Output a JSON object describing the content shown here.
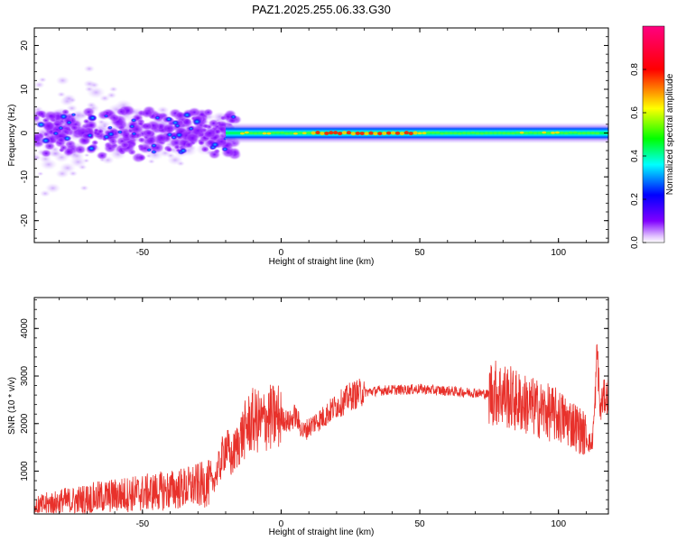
{
  "title": "PAZ1.2025.255.06.33.G30",
  "chart_data": [
    {
      "type": "heatmap",
      "xlabel": "Height of straight line (km)",
      "ylabel": "Frequency (Hz)",
      "xlim": [
        -89,
        118
      ],
      "ylim": [
        -25,
        24
      ],
      "xticks": [
        -50,
        0,
        50,
        100
      ],
      "yticks": [
        -20,
        -10,
        0,
        10,
        20
      ],
      "grid": false,
      "colorbar": {
        "label": "Normalized spectral amplitude",
        "range": [
          0,
          1
        ],
        "ticks": [
          "0.0",
          "0.2",
          "0.4",
          "0.6",
          "0.8"
        ],
        "colormap": "hsv-like (purple-blue-cyan-green-yellow-red-magenta)",
        "colors": [
          "#ffffff",
          "#8000ff",
          "#0000ff",
          "#00ffff",
          "#00ff00",
          "#ffff00",
          "#ff0000",
          "#ff0080"
        ]
      },
      "features": [
        {
          "x_range": [
            -89,
            -20
          ],
          "freq_spread": [
            -12,
            12
          ],
          "amplitude": "low-medium, scattered"
        },
        {
          "x_range": [
            -20,
            118
          ],
          "freq_spread": [
            -1.5,
            1.5
          ],
          "amplitude": "high, narrow band near 0 Hz"
        },
        {
          "x_range": [
            10,
            50
          ],
          "freq_spread": [
            -0.5,
            0.5
          ],
          "amplitude": "peak (red) near 0 Hz"
        }
      ]
    },
    {
      "type": "line",
      "xlabel": "Height of straight line (km)",
      "ylabel": "SNR (10 * v/v)",
      "xlim": [
        -89,
        118
      ],
      "ylim": [
        100,
        4650
      ],
      "xticks": [
        -50,
        0,
        50,
        100
      ],
      "yticks": [
        1000,
        2000,
        3000,
        4000
      ],
      "grid": false,
      "series": [
        {
          "color": "#e8312b",
          "x": [
            -89,
            -85,
            -80,
            -75,
            -70,
            -65,
            -60,
            -55,
            -50,
            -45,
            -40,
            -35,
            -30,
            -25,
            -22,
            -20,
            -18,
            -15,
            -12,
            -10,
            -7,
            -5,
            -2,
            0,
            3,
            5,
            8,
            10,
            12,
            15,
            18,
            20,
            23,
            25,
            28,
            30,
            35,
            40,
            45,
            50,
            55,
            60,
            65,
            70,
            75,
            80,
            85,
            90,
            95,
            100,
            103,
            105,
            108,
            110,
            112,
            113,
            114,
            115,
            116,
            118
          ],
          "y": [
            200,
            260,
            320,
            340,
            380,
            420,
            450,
            480,
            500,
            530,
            560,
            600,
            650,
            700,
            1100,
            1500,
            1200,
            1600,
            1900,
            2000,
            1950,
            2050,
            2050,
            2100,
            2000,
            2150,
            1800,
            1900,
            2000,
            2100,
            2250,
            2350,
            2450,
            2550,
            2600,
            2650,
            2680,
            2700,
            2700,
            2720,
            2690,
            2680,
            2650,
            2640,
            2600,
            2550,
            2400,
            2300,
            2200,
            2100,
            2000,
            1950,
            1800,
            1700,
            1500,
            2200,
            3500,
            2200,
            2500,
            2550
          ]
        }
      ]
    }
  ]
}
